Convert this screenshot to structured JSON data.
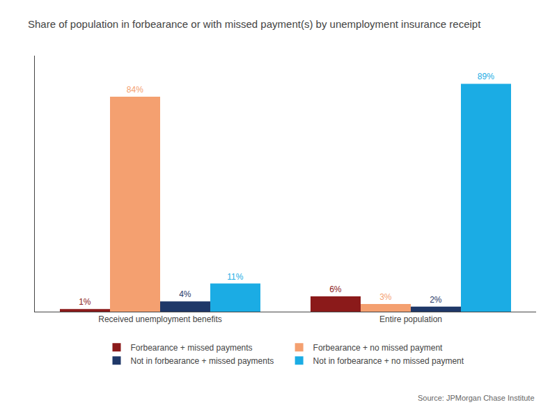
{
  "chart_data": {
    "type": "bar",
    "title": "Share of population in forbearance or with missed payment(s) by unemployment insurance receipt",
    "categories": [
      "Received unemployment benefits",
      "Entire population"
    ],
    "series": [
      {
        "name": "Forbearance + missed payments",
        "color": "#8B1A1A",
        "values": [
          1,
          6
        ],
        "value_labels": [
          "1%",
          "6%"
        ]
      },
      {
        "name": "Forbearance + no missed payment",
        "color": "#F4A070",
        "values": [
          84,
          3
        ],
        "value_labels": [
          "84%",
          "3%"
        ]
      },
      {
        "name": "Not in forbearance + missed payments",
        "color": "#1F3868",
        "values": [
          4,
          2
        ],
        "value_labels": [
          "4%",
          "2%"
        ]
      },
      {
        "name": "Not in forbearance + no missed payment",
        "color": "#1BACE4",
        "values": [
          11,
          89
        ],
        "value_labels": [
          "11%",
          "89%"
        ]
      }
    ],
    "ylim": [
      0,
      100
    ],
    "grid": false,
    "legend": "bottom",
    "data_labels": true,
    "tick_labels": "x",
    "annotations": [
      "Source: JPMorgan Chase Institute"
    ]
  }
}
